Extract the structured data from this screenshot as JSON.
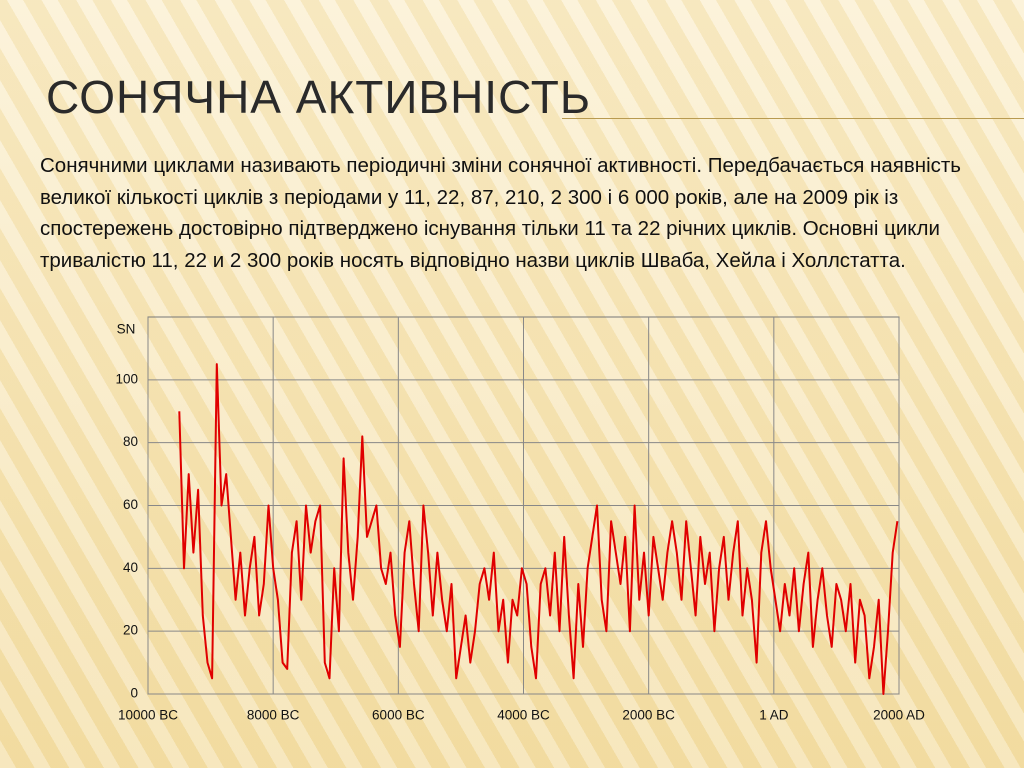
{
  "slide": {
    "title": "Сонячна активність",
    "text": "Сонячними циклами називають періодичні зміни сонячної активності. Передбачається наявність великої кількості циклів з періодами у 11, 22, 87, 210, 2 300 і 6 000 років, але на 2009 рік із спостережень достовірно підтверджено існування тільки 11 та 22 річних циклів. Основні цикли тривалістю 11, 22 и 2 300 років носять відповідно назви циклів Шваба, Хейла і Холлстатта."
  },
  "chart_data": {
    "type": "line",
    "ylabel": "SN",
    "grid": true,
    "xlim": [
      -10000,
      2000
    ],
    "ylim": [
      0,
      120
    ],
    "xticks": [
      {
        "value": -10000,
        "label": "10000 BC"
      },
      {
        "value": -8000,
        "label": "8000 BC"
      },
      {
        "value": -6000,
        "label": "6000 BC"
      },
      {
        "value": -4000,
        "label": "4000 BC"
      },
      {
        "value": -2000,
        "label": "2000 BC"
      },
      {
        "value": 0,
        "label": "1 AD"
      },
      {
        "value": 2000,
        "label": "2000 AD"
      }
    ],
    "yticks": [
      0,
      20,
      40,
      60,
      80,
      100
    ],
    "series": [
      {
        "color": "#e00000",
        "x": [
          -9500,
          -9425,
          -9350,
          -9275,
          -9200,
          -9125,
          -9050,
          -8975,
          -8900,
          -8825,
          -8750,
          -8675,
          -8600,
          -8525,
          -8450,
          -8375,
          -8300,
          -8225,
          -8150,
          -8075,
          -8000,
          -7925,
          -7850,
          -7775,
          -7700,
          -7625,
          -7550,
          -7475,
          -7400,
          -7325,
          -7250,
          -7175,
          -7100,
          -7025,
          -6950,
          -6875,
          -6800,
          -6725,
          -6650,
          -6575,
          -6500,
          -6425,
          -6350,
          -6275,
          -6200,
          -6125,
          -6050,
          -5975,
          -5900,
          -5825,
          -5750,
          -5675,
          -5600,
          -5525,
          -5450,
          -5375,
          -5300,
          -5225,
          -5150,
          -5075,
          -5000,
          -4925,
          -4850,
          -4775,
          -4700,
          -4625,
          -4550,
          -4475,
          -4400,
          -4325,
          -4250,
          -4175,
          -4100,
          -4025,
          -3950,
          -3875,
          -3800,
          -3725,
          -3650,
          -3575,
          -3500,
          -3425,
          -3350,
          -3275,
          -3200,
          -3125,
          -3050,
          -2975,
          -2900,
          -2825,
          -2750,
          -2675,
          -2600,
          -2525,
          -2450,
          -2375,
          -2300,
          -2225,
          -2150,
          -2075,
          -2000,
          -1925,
          -1850,
          -1775,
          -1700,
          -1625,
          -1550,
          -1475,
          -1400,
          -1325,
          -1250,
          -1175,
          -1100,
          -1025,
          -950,
          -875,
          -800,
          -725,
          -650,
          -575,
          -500,
          -425,
          -350,
          -275,
          -200,
          -125,
          -50,
          25,
          100,
          175,
          250,
          325,
          400,
          475,
          550,
          625,
          700,
          775,
          850,
          925,
          1000,
          1075,
          1150,
          1225,
          1300,
          1375,
          1450,
          1525,
          1600,
          1675,
          1750,
          1825,
          1900,
          1975
        ],
        "values": [
          90,
          40,
          70,
          45,
          65,
          25,
          10,
          5,
          105,
          60,
          70,
          50,
          30,
          45,
          25,
          40,
          50,
          25,
          35,
          60,
          40,
          30,
          10,
          8,
          45,
          55,
          30,
          60,
          45,
          55,
          60,
          10,
          5,
          40,
          20,
          75,
          45,
          30,
          50,
          82,
          50,
          55,
          60,
          40,
          35,
          45,
          25,
          15,
          45,
          55,
          35,
          20,
          60,
          45,
          25,
          45,
          30,
          20,
          35,
          5,
          15,
          25,
          10,
          20,
          35,
          40,
          30,
          45,
          20,
          30,
          10,
          30,
          25,
          40,
          35,
          15,
          5,
          35,
          40,
          25,
          45,
          20,
          50,
          25,
          5,
          35,
          15,
          40,
          50,
          60,
          30,
          20,
          55,
          45,
          35,
          50,
          20,
          60,
          30,
          45,
          25,
          50,
          40,
          30,
          45,
          55,
          45,
          30,
          55,
          40,
          25,
          50,
          35,
          45,
          20,
          40,
          50,
          30,
          45,
          55,
          25,
          40,
          30,
          10,
          45,
          55,
          40,
          30,
          20,
          35,
          25,
          40,
          20,
          35,
          45,
          15,
          30,
          40,
          25,
          15,
          35,
          30,
          20,
          35,
          10,
          30,
          25,
          5,
          15,
          30,
          0,
          20,
          45,
          55
        ]
      }
    ]
  }
}
